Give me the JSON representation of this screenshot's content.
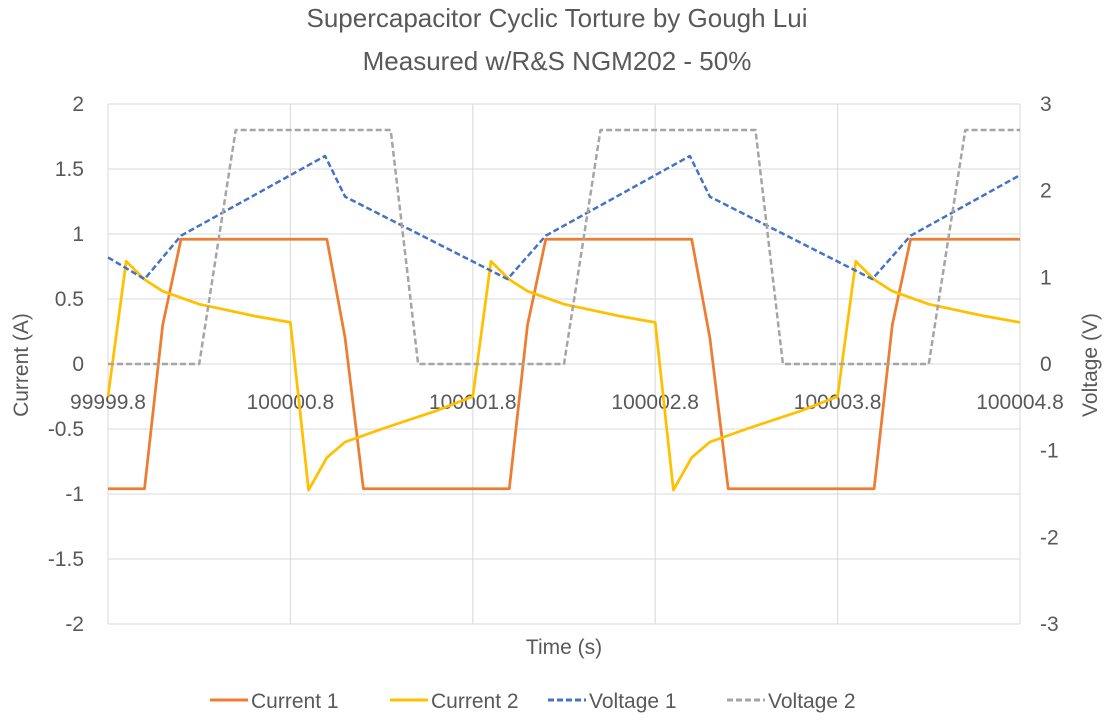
{
  "chart_data": {
    "type": "line",
    "title": "Supercapacitor Cyclic Torture by Gough Lui",
    "subtitle": "Measured w/R&S NGM202 - 50%",
    "xlabel": "Time (s)",
    "ylabel": "Current (A)",
    "y2label": "Voltage (V)",
    "xlim": [
      99999.8,
      100004.8
    ],
    "ylim": [
      -2,
      2
    ],
    "y2lim": [
      -3,
      3
    ],
    "x_ticks": [
      "99999.8",
      "100000.8",
      "100001.8",
      "100002.8",
      "100003.8",
      "100004.8"
    ],
    "y_ticks": [
      "2",
      "1.5",
      "1",
      "0.5",
      "0",
      "-0.5",
      "-1",
      "-1.5",
      "-2"
    ],
    "y2_ticks": [
      "3",
      "2",
      "1",
      "0",
      "-1",
      "-2",
      "-3"
    ],
    "grid": true,
    "legend_position": "bottom",
    "series": [
      {
        "name": "Current 1",
        "axis": "left",
        "color": "#ED7D31",
        "dash": "solid",
        "x": [
          99999.8,
          100000.0,
          100000.1,
          100000.2,
          100000.6,
          100000.8,
          100001.0,
          100001.1,
          100001.2,
          100001.8,
          100002.0,
          100002.1,
          100002.2,
          100002.6,
          100002.8,
          100003.0,
          100003.1,
          100003.2,
          100003.8,
          100004.0,
          100004.1,
          100004.2,
          100004.8
        ],
        "y": [
          -0.96,
          -0.96,
          0.3,
          0.96,
          0.96,
          0.96,
          0.96,
          0.2,
          -0.96,
          -0.96,
          -0.96,
          0.3,
          0.96,
          0.96,
          0.96,
          0.96,
          0.2,
          -0.96,
          -0.96,
          -0.96,
          0.3,
          0.96,
          0.96
        ]
      },
      {
        "name": "Current 2",
        "axis": "left",
        "color": "#FFC000",
        "dash": "solid",
        "x": [
          99999.8,
          99999.9,
          100000.0,
          100000.1,
          100000.3,
          100000.6,
          100000.8,
          100000.9,
          100001.0,
          100001.1,
          100001.3,
          100001.6,
          100001.8,
          100001.9,
          100002.0,
          100002.1,
          100002.3,
          100002.6,
          100002.8,
          100002.9,
          100003.0,
          100003.1,
          100003.3,
          100003.6,
          100003.8,
          100003.9,
          100004.0,
          100004.1,
          100004.3,
          100004.6,
          100004.8
        ],
        "y": [
          -0.25,
          0.79,
          0.65,
          0.56,
          0.46,
          0.37,
          0.32,
          -0.97,
          -0.72,
          -0.6,
          -0.5,
          -0.36,
          -0.25,
          0.79,
          0.65,
          0.56,
          0.46,
          0.37,
          0.32,
          -0.97,
          -0.72,
          -0.6,
          -0.5,
          -0.36,
          -0.25,
          0.79,
          0.65,
          0.56,
          0.46,
          0.37,
          0.32
        ]
      },
      {
        "name": "Voltage 1",
        "axis": "right",
        "color": "#4472C4",
        "dash": "dashed",
        "x": [
          99999.8,
          100000.0,
          100000.2,
          100000.99,
          100001.1,
          100001.99,
          100002.2,
          100002.99,
          100003.1,
          100003.99,
          100004.2,
          100004.8
        ],
        "y": [
          1.23,
          0.98,
          1.48,
          2.4,
          1.93,
          0.98,
          1.48,
          2.4,
          1.93,
          0.98,
          1.48,
          2.18
        ]
      },
      {
        "name": "Voltage 2",
        "axis": "right",
        "color": "#A5A5A5",
        "dash": "dashed",
        "x": [
          99999.8,
          100000.3,
          100000.5,
          100001.35,
          100001.5,
          100002.3,
          100002.5,
          100003.35,
          100003.5,
          100004.3,
          100004.5,
          100004.8
        ],
        "y": [
          0,
          0,
          2.7,
          2.7,
          0,
          0,
          2.7,
          2.7,
          0,
          0,
          2.7,
          2.7
        ]
      }
    ]
  }
}
